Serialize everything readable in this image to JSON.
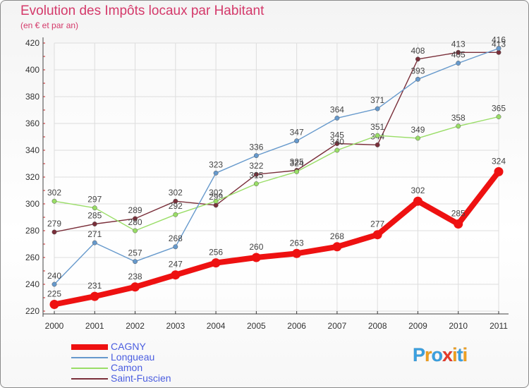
{
  "title": "Evolution des Impôts locaux par Habitant",
  "subtitle": "(en € et par an)",
  "chart_data": {
    "type": "line",
    "title": "Evolution des Impôts locaux par Habitant",
    "subtitle": "(en € et par an)",
    "x": [
      "2000",
      "2001",
      "2002",
      "2003",
      "2004",
      "2005",
      "2006",
      "2007",
      "2008",
      "2009",
      "2010",
      "2011"
    ],
    "ylim": [
      220,
      420
    ],
    "yticks": [
      220,
      240,
      260,
      280,
      300,
      320,
      340,
      360,
      380,
      400,
      420
    ],
    "grid": true,
    "legend_position": "bottom-left",
    "series": [
      {
        "name": "CAGNY",
        "color": "#ee1111",
        "values": [
          225,
          231,
          238,
          247,
          256,
          260,
          263,
          268,
          277,
          302,
          285,
          324
        ]
      },
      {
        "name": "Longueau",
        "color": "#6699cc",
        "values": [
          240,
          271,
          257,
          268,
          323,
          336,
          347,
          364,
          371,
          393,
          405,
          416
        ]
      },
      {
        "name": "Camon",
        "color": "#99dd66",
        "values": [
          302,
          297,
          280,
          292,
          302,
          315,
          324,
          340,
          351,
          349,
          358,
          365
        ]
      },
      {
        "name": "Saint-Fuscien",
        "color": "#7a2f3a",
        "values": [
          279,
          285,
          289,
          302,
          299,
          322,
          325,
          345,
          344,
          408,
          413,
          413
        ]
      }
    ]
  },
  "logo": {
    "letters": [
      "P",
      "r",
      "o",
      "x",
      "i",
      "t",
      "i"
    ],
    "colors": [
      "#3aa0e0",
      "#f0a020",
      "#3aa0e0",
      "#e83a2a",
      "#f0a020",
      "#3aa0e0",
      "#f0a020"
    ]
  }
}
